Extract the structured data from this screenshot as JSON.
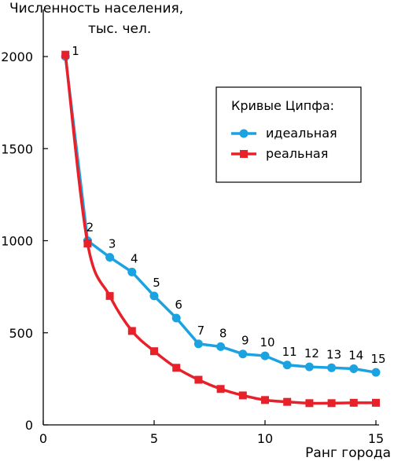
{
  "chart_data": {
    "type": "line",
    "title": "",
    "ylabel": [
      "Численность населения,",
      "тыс. чел."
    ],
    "xlabel": "Ранг города",
    "xlim": [
      0,
      15
    ],
    "ylim": [
      0,
      2000
    ],
    "xticks": [
      "0",
      "5",
      "10",
      "15"
    ],
    "yticks": [
      "0",
      "500",
      "1000",
      "1500",
      "2000"
    ],
    "grid": false,
    "legend": {
      "title": "Кривые Ципфа:",
      "position": "top-right"
    },
    "point_labels": [
      "1",
      "2",
      "3",
      "4",
      "5",
      "6",
      "7",
      "8",
      "9",
      "10",
      "11",
      "12",
      "13",
      "14",
      "15"
    ],
    "x": [
      1,
      2,
      3,
      4,
      5,
      6,
      7,
      8,
      9,
      10,
      11,
      12,
      13,
      14,
      15
    ],
    "series": [
      {
        "name": "идеальная",
        "color": "#1aa3e0",
        "marker": "circle",
        "values": [
          2000,
          1000,
          910,
          830,
          700,
          580,
          440,
          425,
          385,
          375,
          325,
          315,
          310,
          305,
          285
        ]
      },
      {
        "name": "реальная",
        "color": "#e8202a",
        "marker": "square",
        "values": [
          2010,
          985,
          700,
          510,
          400,
          310,
          245,
          195,
          160,
          135,
          125,
          118,
          118,
          120,
          120
        ]
      }
    ]
  }
}
